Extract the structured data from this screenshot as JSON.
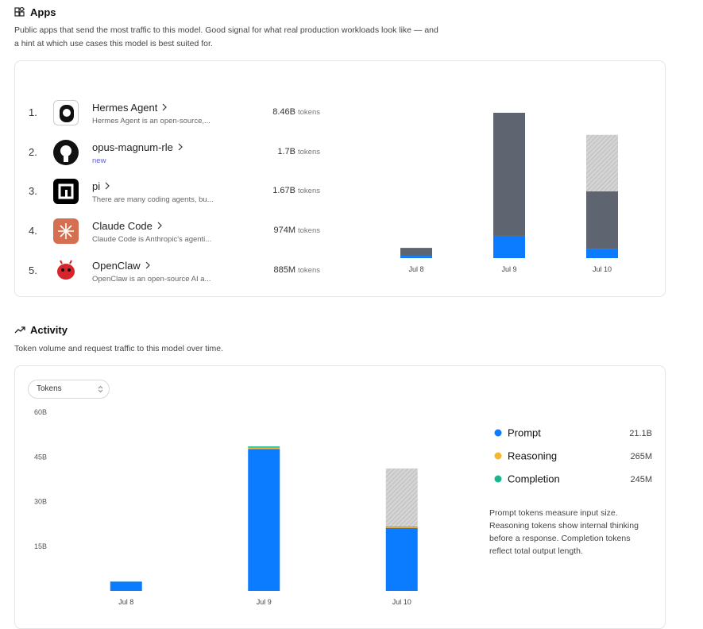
{
  "apps": {
    "title": "Apps",
    "description": "Public apps that send the most traffic to this model. Good signal for what real production workloads look like — and a hint at which use cases this model is best suited for.",
    "list": [
      {
        "rank": "1.",
        "name": "Hermes Agent",
        "description": "Hermes Agent is an open-source,...",
        "tokens": "8.46B",
        "unit": "tokens"
      },
      {
        "rank": "2.",
        "name": "opus-magnum-rle",
        "badge": "new",
        "tokens": "1.7B",
        "unit": "tokens"
      },
      {
        "rank": "3.",
        "name": "pi",
        "description": "There are many coding agents, bu...",
        "tokens": "1.67B",
        "unit": "tokens"
      },
      {
        "rank": "4.",
        "name": "Claude Code",
        "description": "Claude Code is Anthropic's agenti...",
        "tokens": "974M",
        "unit": "tokens"
      },
      {
        "rank": "5.",
        "name": "OpenClaw",
        "description": "OpenClaw is an open-source AI a...",
        "tokens": "885M",
        "unit": "tokens"
      }
    ]
  },
  "activity": {
    "title": "Activity",
    "description": "Token volume and request traffic to this model over time.",
    "selector": "Tokens",
    "note": "Prompt tokens measure input size. Reasoning tokens show internal thinking before a response. Completion tokens reflect total output length."
  },
  "chart_data": [
    {
      "type": "bar",
      "stacked": true,
      "categories": [
        "Jul 8",
        "Jul 9",
        "Jul 10"
      ],
      "series": [
        {
          "color": "#0b7bff",
          "values": [
            0.13,
            1.26,
            0.5
          ]
        },
        {
          "color": "#5f6570",
          "values": [
            0.45,
            6.97,
            3.28
          ]
        },
        {
          "color": "#c6c6c6",
          "pattern": "hatch",
          "values": [
            null,
            null,
            3.2
          ]
        }
      ]
    },
    {
      "type": "bar",
      "stacked": true,
      "categories": [
        "Jul 8",
        "Jul 9",
        "Jul 10"
      ],
      "ylim": [
        0,
        60
      ],
      "yticks": [
        {
          "value": 15,
          "label": "15B"
        },
        {
          "value": 30,
          "label": "30B"
        },
        {
          "value": 45,
          "label": "45B"
        },
        {
          "value": 60,
          "label": "60B"
        }
      ],
      "series": [
        {
          "name": "Prompt",
          "color": "#0b7bff",
          "values": [
            3.1,
            47.6,
            21.1
          ],
          "value_labels": [
            null,
            null,
            "21.1B"
          ]
        },
        {
          "name": "Reasoning",
          "color": "#f5b731",
          "values": [
            0.03,
            0.5,
            0.265
          ],
          "value_labels": [
            null,
            null,
            "265M"
          ]
        },
        {
          "name": "Completion",
          "color": "#17b890",
          "values": [
            0.03,
            0.4,
            0.245
          ],
          "value_labels": [
            null,
            null,
            "245M"
          ]
        },
        {
          "color": "#c6c6c6",
          "pattern": "hatch",
          "values": [
            null,
            null,
            19.5
          ]
        }
      ]
    }
  ]
}
